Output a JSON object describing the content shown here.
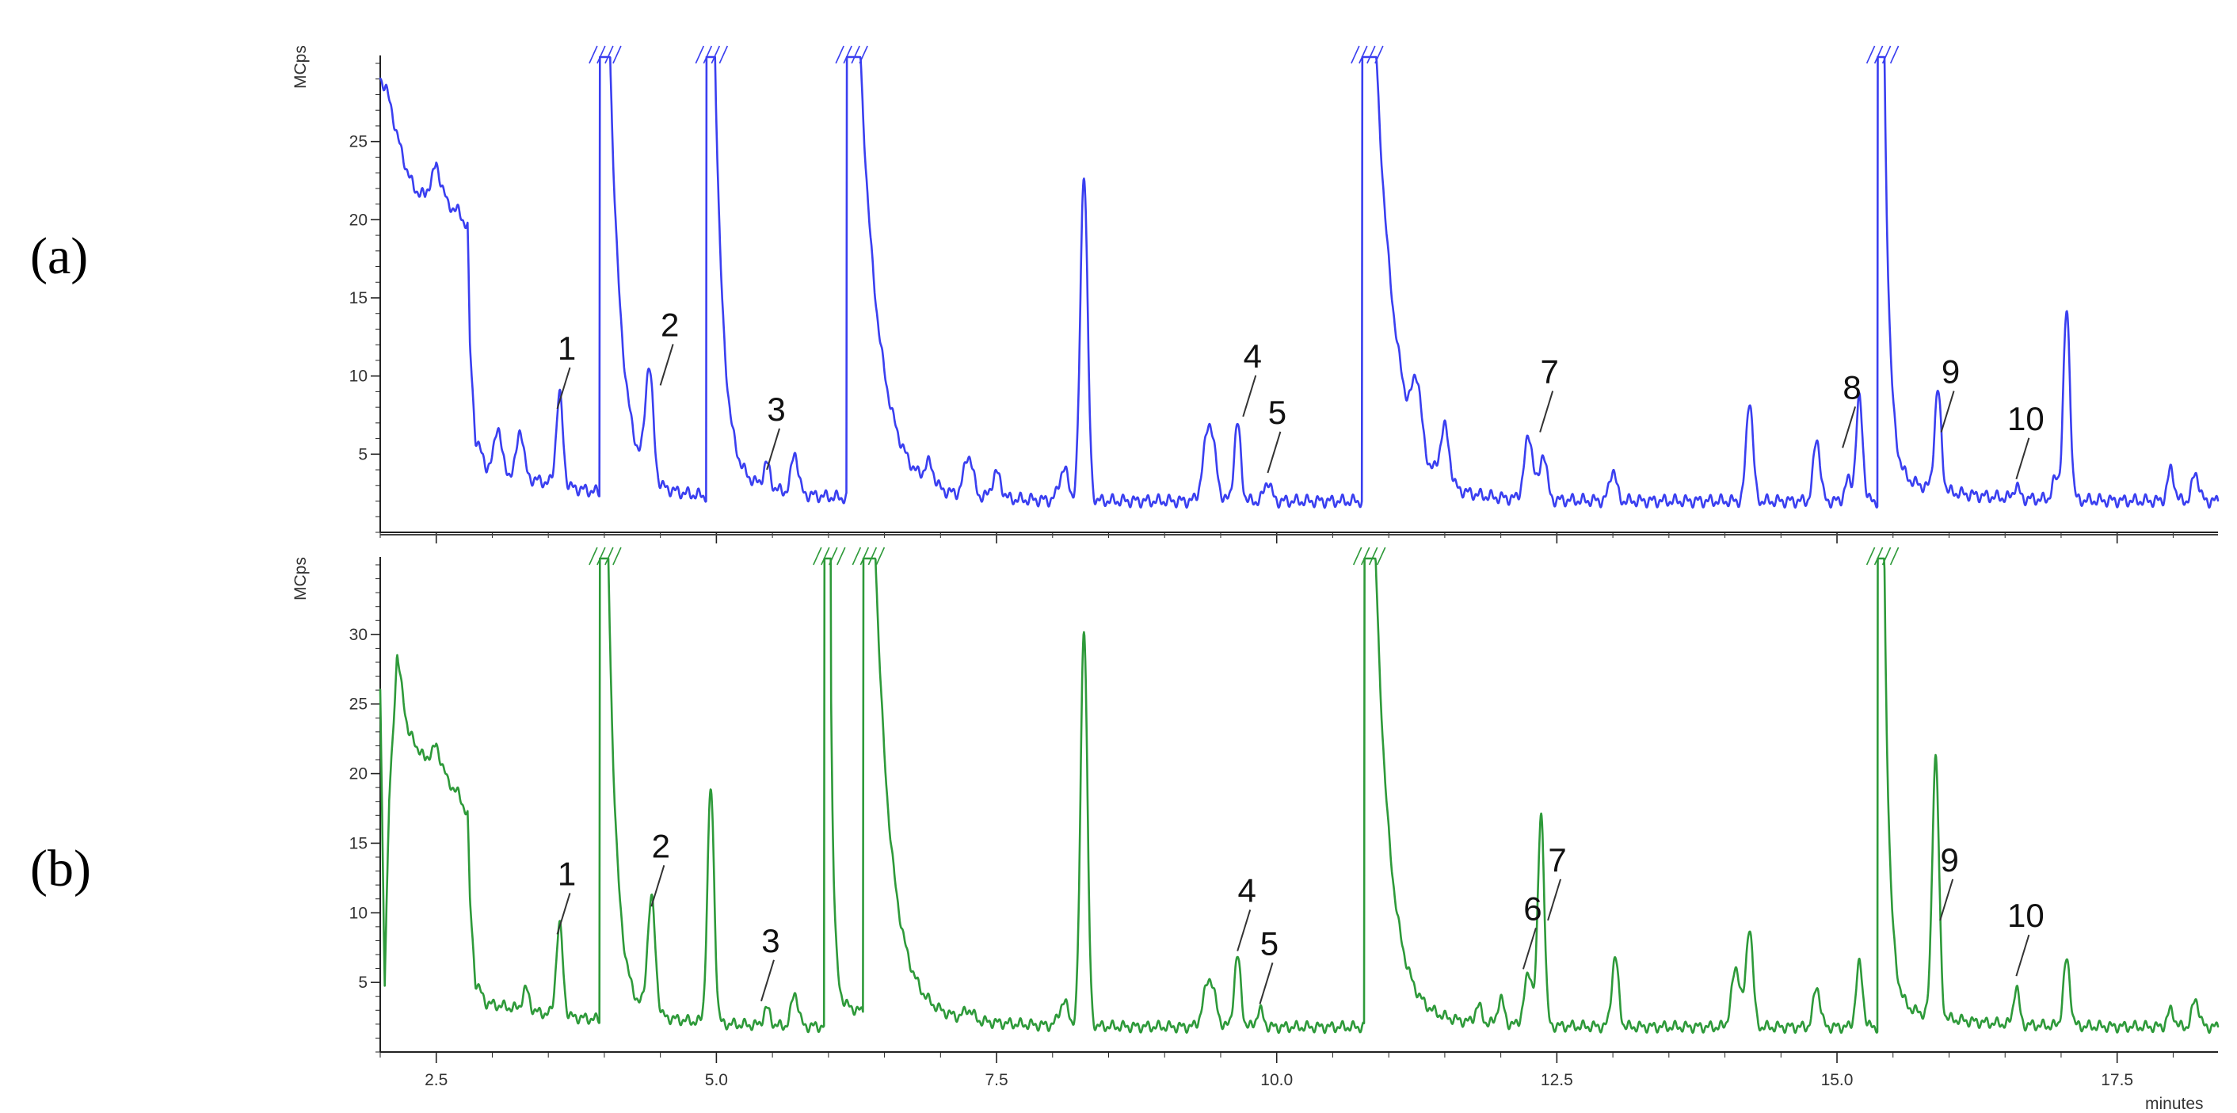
{
  "chart_data": [
    {
      "panel": "(a)",
      "type": "line",
      "xlabel": "minutes",
      "ylabel": "MCps",
      "xlim": [
        2.0,
        18.4
      ],
      "ylim": [
        0,
        30
      ],
      "x_ticks": [
        2.5,
        5.0,
        7.5,
        10.0,
        12.5,
        15.0,
        17.5
      ],
      "x_tick_labels": [
        "2.5",
        "5.0",
        "7.5",
        "10.0",
        "12.5",
        "15.0",
        "17.5"
      ],
      "y_ticks": [
        5,
        10,
        15,
        20,
        25
      ],
      "y_tick_labels": [
        "5",
        "10",
        "15",
        "20",
        "25"
      ],
      "color": "#3a3ff0",
      "baseline": 2.0,
      "early_profile": [
        [
          2.0,
          29.0
        ],
        [
          2.05,
          28.5
        ],
        [
          2.1,
          27.0
        ],
        [
          2.2,
          24.0
        ],
        [
          2.3,
          22.0
        ],
        [
          2.4,
          21.5
        ],
        [
          2.5,
          23.5
        ],
        [
          2.6,
          21.0
        ],
        [
          2.7,
          20.5
        ],
        [
          2.78,
          19.5
        ],
        [
          2.8,
          12.0
        ],
        [
          2.85,
          6.0
        ],
        [
          2.95,
          4.2
        ],
        [
          3.3,
          3.5
        ],
        [
          3.6,
          3.0
        ],
        [
          4.0,
          2.5
        ]
      ],
      "peaks": [
        {
          "t": 3.05,
          "h": 4.8,
          "w": 0.03
        },
        {
          "t": 3.25,
          "h": 5.0,
          "w": 0.03
        },
        {
          "t": 3.6,
          "h": 7.8,
          "w": 0.03
        },
        {
          "t": 4.4,
          "h": 9.0,
          "w": 0.035
        },
        {
          "t": 5.45,
          "h": 3.5,
          "w": 0.03
        },
        {
          "t": 5.7,
          "h": 4.6,
          "w": 0.03
        },
        {
          "t": 6.9,
          "h": 3.3,
          "w": 0.04
        },
        {
          "t": 7.25,
          "h": 4.6,
          "w": 0.04
        },
        {
          "t": 7.5,
          "h": 3.6,
          "w": 0.04
        },
        {
          "t": 8.1,
          "h": 4.0,
          "w": 0.04
        },
        {
          "t": 8.28,
          "h": 23.0,
          "w": 0.032
        },
        {
          "t": 9.4,
          "h": 7.0,
          "w": 0.05
        },
        {
          "t": 9.65,
          "h": 6.9,
          "w": 0.03
        },
        {
          "t": 9.92,
          "h": 3.3,
          "w": 0.03
        },
        {
          "t": 11.25,
          "h": 6.0,
          "w": 0.04
        },
        {
          "t": 11.5,
          "h": 5.5,
          "w": 0.04
        },
        {
          "t": 12.25,
          "h": 6.0,
          "w": 0.04
        },
        {
          "t": 12.38,
          "h": 5.0,
          "w": 0.03
        },
        {
          "t": 13.0,
          "h": 4.0,
          "w": 0.03
        },
        {
          "t": 14.22,
          "h": 8.5,
          "w": 0.03
        },
        {
          "t": 14.82,
          "h": 6.0,
          "w": 0.03
        },
        {
          "t": 15.1,
          "h": 3.3,
          "w": 0.03
        },
        {
          "t": 15.2,
          "h": 8.5,
          "w": 0.03
        },
        {
          "t": 15.9,
          "h": 8.3,
          "w": 0.03
        },
        {
          "t": 16.6,
          "h": 2.8,
          "w": 0.025
        },
        {
          "t": 16.95,
          "h": 3.3,
          "w": 0.03
        },
        {
          "t": 17.05,
          "h": 14.0,
          "w": 0.03
        },
        {
          "t": 17.98,
          "h": 4.0,
          "w": 0.03
        },
        {
          "t": 18.2,
          "h": 3.8,
          "w": 0.03
        }
      ],
      "offscale_peaks": [
        {
          "t": 4.0,
          "tail": 2.2
        },
        {
          "t": 4.95,
          "tail": 1.6
        },
        {
          "t": 6.2,
          "tail": 3.6
        },
        {
          "t": 10.8,
          "tail": 3.8
        },
        {
          "t": 15.4,
          "tail": 1.0
        }
      ],
      "labels": [
        {
          "text": "1",
          "t": 3.58,
          "ref": 7.5
        },
        {
          "text": "2",
          "t": 4.5,
          "ref": 9.0
        },
        {
          "text": "3",
          "t": 5.45,
          "ref": 3.6
        },
        {
          "text": "4",
          "t": 9.7,
          "ref": 7.0
        },
        {
          "text": "5",
          "t": 9.92,
          "ref": 3.4
        },
        {
          "text": "7",
          "t": 12.35,
          "ref": 6.0
        },
        {
          "text": "8",
          "t": 15.05,
          "ref": 5.0
        },
        {
          "text": "9",
          "t": 15.93,
          "ref": 6.0
        },
        {
          "text": "10",
          "t": 16.6,
          "ref": 3.0
        }
      ]
    },
    {
      "panel": "(b)",
      "type": "line",
      "xlabel": "minutes",
      "ylabel": "MCps",
      "xlim": [
        2.0,
        18.4
      ],
      "ylim": [
        0,
        35
      ],
      "x_ticks": [
        2.5,
        5.0,
        7.5,
        10.0,
        12.5,
        15.0,
        17.5
      ],
      "x_tick_labels": [
        "2.5",
        "5.0",
        "7.5",
        "10.0",
        "12.5",
        "15.0",
        "17.5"
      ],
      "y_ticks": [
        5,
        10,
        15,
        20,
        25,
        30
      ],
      "y_tick_labels": [
        "5",
        "10",
        "15",
        "20",
        "25",
        "30"
      ],
      "color": "#2e9a3a",
      "baseline": 1.8,
      "early_profile": [
        [
          2.0,
          26.0
        ],
        [
          2.04,
          5.0
        ],
        [
          2.08,
          18.0
        ],
        [
          2.15,
          28.5
        ],
        [
          2.25,
          23.0
        ],
        [
          2.4,
          21.0
        ],
        [
          2.5,
          22.0
        ],
        [
          2.6,
          19.5
        ],
        [
          2.7,
          18.5
        ],
        [
          2.78,
          17.0
        ],
        [
          2.8,
          11.0
        ],
        [
          2.85,
          5.0
        ],
        [
          2.95,
          3.5
        ],
        [
          3.3,
          3.0
        ],
        [
          3.6,
          2.6
        ],
        [
          4.0,
          2.3
        ]
      ],
      "peaks": [
        {
          "t": 3.3,
          "h": 3.3,
          "w": 0.03
        },
        {
          "t": 3.6,
          "h": 8.3,
          "w": 0.03
        },
        {
          "t": 4.42,
          "h": 10.0,
          "w": 0.035
        },
        {
          "t": 4.95,
          "h": 18.5,
          "w": 0.03
        },
        {
          "t": 5.45,
          "h": 3.0,
          "w": 0.03
        },
        {
          "t": 5.7,
          "h": 4.2,
          "w": 0.03
        },
        {
          "t": 7.25,
          "h": 2.5,
          "w": 0.04
        },
        {
          "t": 8.1,
          "h": 3.5,
          "w": 0.04
        },
        {
          "t": 8.28,
          "h": 30.5,
          "w": 0.03
        },
        {
          "t": 9.4,
          "h": 5.3,
          "w": 0.05
        },
        {
          "t": 9.65,
          "h": 6.8,
          "w": 0.03
        },
        {
          "t": 9.85,
          "h": 3.0,
          "w": 0.03
        },
        {
          "t": 11.8,
          "h": 3.0,
          "w": 0.03
        },
        {
          "t": 12.0,
          "h": 3.6,
          "w": 0.03
        },
        {
          "t": 12.25,
          "h": 5.5,
          "w": 0.04
        },
        {
          "t": 12.36,
          "h": 17.0,
          "w": 0.028
        },
        {
          "t": 13.02,
          "h": 6.8,
          "w": 0.03
        },
        {
          "t": 14.1,
          "h": 6.0,
          "w": 0.04
        },
        {
          "t": 14.22,
          "h": 9.0,
          "w": 0.03
        },
        {
          "t": 14.82,
          "h": 4.7,
          "w": 0.03
        },
        {
          "t": 15.2,
          "h": 6.3,
          "w": 0.03
        },
        {
          "t": 15.88,
          "h": 20.5,
          "w": 0.03
        },
        {
          "t": 16.6,
          "h": 4.5,
          "w": 0.025
        },
        {
          "t": 17.05,
          "h": 6.5,
          "w": 0.03
        },
        {
          "t": 17.98,
          "h": 3.0,
          "w": 0.03
        },
        {
          "t": 18.2,
          "h": 3.8,
          "w": 0.03
        }
      ],
      "offscale_peaks": [
        {
          "t": 4.0,
          "tail": 1.6
        },
        {
          "t": 6.0,
          "tail": 0.6
        },
        {
          "t": 6.35,
          "tail": 3.0
        },
        {
          "t": 10.82,
          "tail": 2.8
        },
        {
          "t": 15.4,
          "tail": 1.0
        }
      ],
      "labels": [
        {
          "text": "1",
          "t": 3.58,
          "ref": 8.0
        },
        {
          "text": "2",
          "t": 4.42,
          "ref": 10.0
        },
        {
          "text": "3",
          "t": 5.4,
          "ref": 3.2
        },
        {
          "text": "4",
          "t": 9.65,
          "ref": 6.8
        },
        {
          "text": "5",
          "t": 9.85,
          "ref": 3.0
        },
        {
          "text": "6",
          "t": 12.2,
          "ref": 5.5
        },
        {
          "text": "7",
          "t": 12.42,
          "ref": 9.0
        },
        {
          "text": "9",
          "t": 15.92,
          "ref": 9.0
        },
        {
          "text": "10",
          "t": 16.6,
          "ref": 5.0
        }
      ]
    }
  ]
}
